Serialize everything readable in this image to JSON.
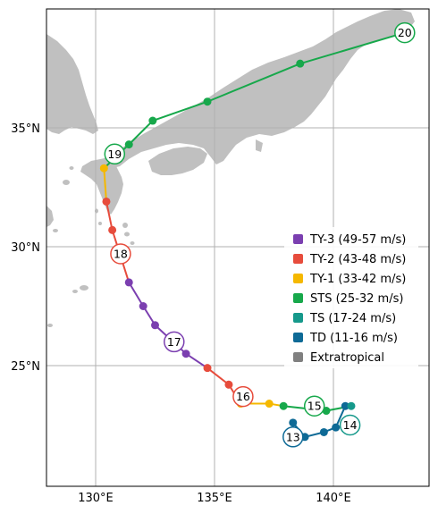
{
  "map": {
    "type": "typhoon-track",
    "extent": {
      "lon": [
        128.0,
        144.0
      ],
      "lat": [
        20.0,
        40.0
      ]
    },
    "colors": {
      "land": "#c0c0c0",
      "grid": "#b0b0b0",
      "frame": "#000000"
    },
    "gridlines": {
      "lons": [
        130,
        135,
        140
      ],
      "lats": [
        25,
        30,
        35
      ]
    },
    "axes": {
      "x_tick_labels": [
        "130°E",
        "135°E",
        "140°E"
      ],
      "y_tick_labels": [
        "25°N",
        "30°N",
        "35°N"
      ]
    },
    "legend": {
      "placement": "right",
      "items": [
        {
          "label": "TY-3 (49-57 m/s)",
          "color": "#7b3fb0"
        },
        {
          "label": "TY-2 (43-48 m/s)",
          "color": "#e74c3c"
        },
        {
          "label": "TY-1 (33-42 m/s)",
          "color": "#f5b800"
        },
        {
          "label": "STS (25-32 m/s)",
          "color": "#17a84b"
        },
        {
          "label": "TS (17-24 m/s)",
          "color": "#16998b"
        },
        {
          "label": "TD (11-16 m/s)",
          "color": "#0e6a96"
        },
        {
          "label": "Extratropical",
          "color": "#808080"
        }
      ]
    },
    "track": [
      {
        "lon": 138.3,
        "lat": 22.6,
        "cat": 5
      },
      {
        "lon": 138.8,
        "lat": 22.0,
        "cat": 5
      },
      {
        "lon": 139.6,
        "lat": 22.2,
        "cat": 5
      },
      {
        "lon": 140.1,
        "lat": 22.4,
        "cat": 5
      },
      {
        "lon": 140.5,
        "lat": 23.3,
        "cat": 5
      },
      {
        "lon": 140.75,
        "lat": 23.3,
        "cat": 4
      },
      {
        "lon": 139.7,
        "lat": 23.1,
        "cat": 3
      },
      {
        "lon": 137.9,
        "lat": 23.3,
        "cat": 3
      },
      {
        "lon": 137.3,
        "lat": 23.4,
        "cat": 2
      },
      {
        "lon": 136.1,
        "lat": 23.4,
        "cat": 2
      },
      {
        "lon": 135.6,
        "lat": 24.2,
        "cat": 1
      },
      {
        "lon": 134.7,
        "lat": 24.9,
        "cat": 1
      },
      {
        "lon": 133.8,
        "lat": 25.5,
        "cat": 0
      },
      {
        "lon": 132.5,
        "lat": 26.7,
        "cat": 0
      },
      {
        "lon": 132.0,
        "lat": 27.5,
        "cat": 0
      },
      {
        "lon": 131.4,
        "lat": 28.5,
        "cat": 0
      },
      {
        "lon": 130.7,
        "lat": 30.7,
        "cat": 1
      },
      {
        "lon": 130.45,
        "lat": 31.9,
        "cat": 1
      },
      {
        "lon": 130.35,
        "lat": 33.3,
        "cat": 2
      },
      {
        "lon": 131.4,
        "lat": 34.3,
        "cat": 3
      },
      {
        "lon": 132.4,
        "lat": 35.3,
        "cat": 3
      },
      {
        "lon": 134.7,
        "lat": 36.1,
        "cat": 3
      },
      {
        "lon": 138.6,
        "lat": 37.7,
        "cat": 3
      },
      {
        "lon": 143.0,
        "lat": 39.0,
        "cat": 3
      }
    ],
    "day_markers": [
      {
        "label": "13",
        "lon": 138.3,
        "lat": 22.0,
        "cat": 5
      },
      {
        "label": "14",
        "lon": 140.7,
        "lat": 22.5,
        "cat": 4
      },
      {
        "label": "15",
        "lon": 139.2,
        "lat": 23.3,
        "cat": 3
      },
      {
        "label": "16",
        "lon": 136.2,
        "lat": 23.7,
        "cat": 1
      },
      {
        "label": "17",
        "lon": 133.3,
        "lat": 26.0,
        "cat": 0
      },
      {
        "label": "18",
        "lon": 131.05,
        "lat": 29.7,
        "cat": 1
      },
      {
        "label": "19",
        "lon": 130.8,
        "lat": 33.9,
        "cat": 3
      },
      {
        "label": "20",
        "lon": 143.0,
        "lat": 39.0,
        "cat": 3
      }
    ]
  }
}
